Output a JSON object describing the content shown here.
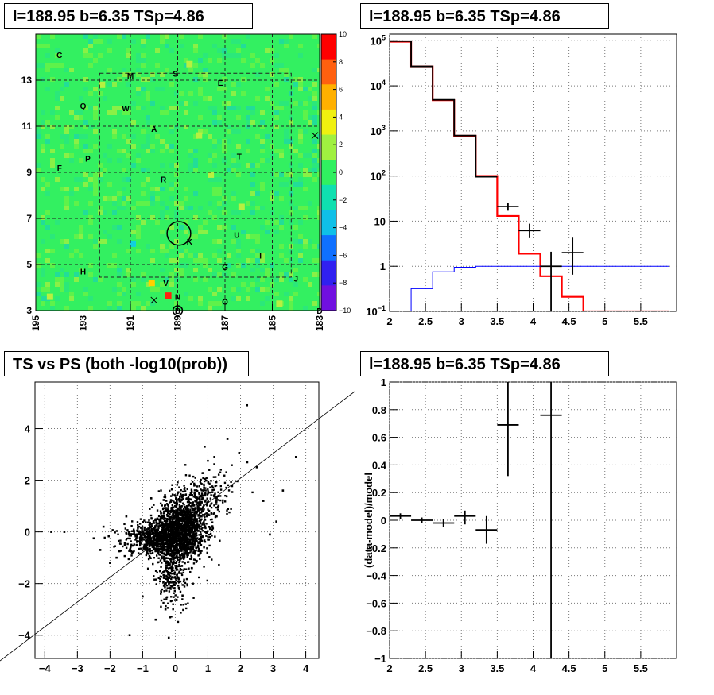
{
  "chart_data": [
    {
      "type": "heatmap",
      "title": "l=188.95 b=6.35 TSp=4.86",
      "xlim": [
        195,
        183
      ],
      "ylim": [
        3,
        15
      ],
      "x_ticks": [
        "195",
        "193",
        "191",
        "189",
        "187",
        "185",
        "183"
      ],
      "y_ticks": [
        "3",
        "5",
        "7",
        "9",
        "11",
        "13"
      ],
      "colorbar": {
        "min": -10,
        "max": 10,
        "ticks": [
          "10",
          "8",
          "6",
          "4",
          "2",
          "0",
          "−2",
          "−4",
          "−6",
          "−8",
          "−10"
        ]
      },
      "colors": {
        "background": "#33f061"
      },
      "hotspots": [
        {
          "l": 189.4,
          "b": 3.65,
          "v": 9
        },
        {
          "l": 190.1,
          "b": 4.2,
          "v": 4
        },
        {
          "l": 188.1,
          "b": 10.6,
          "v": 3
        },
        {
          "l": 187.6,
          "b": 8.9,
          "v": 2.5
        },
        {
          "l": 192.2,
          "b": 12.8,
          "v": 2
        },
        {
          "l": 184.7,
          "b": 3.3,
          "v": 3
        },
        {
          "l": 194.4,
          "b": 3.6,
          "v": 3
        },
        {
          "l": 190.9,
          "b": 5.9,
          "v": -3
        },
        {
          "l": 186.3,
          "b": 7.5,
          "v": 2
        },
        {
          "l": 188.5,
          "b": 13.7,
          "v": 2
        }
      ],
      "sources": [
        {
          "label": "C",
          "l": 194.0,
          "b": 14.1
        },
        {
          "label": "M",
          "l": 191.0,
          "b": 13.2
        },
        {
          "label": "S",
          "l": 189.1,
          "b": 13.3
        },
        {
          "label": "E",
          "l": 187.2,
          "b": 12.9
        },
        {
          "label": "Q",
          "l": 193.0,
          "b": 11.9
        },
        {
          "label": "W",
          "l": 191.2,
          "b": 11.8
        },
        {
          "label": "A",
          "l": 190.0,
          "b": 10.9
        },
        {
          "label": "F",
          "l": 194.0,
          "b": 9.2
        },
        {
          "label": "P",
          "l": 192.8,
          "b": 9.6
        },
        {
          "label": "T",
          "l": 186.4,
          "b": 9.7
        },
        {
          "label": "R",
          "l": 189.6,
          "b": 8.7
        },
        {
          "label": "U",
          "l": 186.5,
          "b": 6.3
        },
        {
          "label": "K",
          "l": 188.5,
          "b": 6.0
        },
        {
          "label": "I",
          "l": 185.5,
          "b": 5.4
        },
        {
          "label": "G",
          "l": 187.0,
          "b": 4.9
        },
        {
          "label": "H",
          "l": 193.0,
          "b": 4.7
        },
        {
          "label": "J",
          "l": 184.0,
          "b": 4.4
        },
        {
          "label": "V",
          "l": 189.5,
          "b": 4.2
        },
        {
          "label": "N",
          "l": 189.0,
          "b": 3.6
        },
        {
          "label": "O",
          "l": 187.0,
          "b": 3.4
        },
        {
          "label": "B",
          "l": 189.0,
          "b": 3.0
        },
        {
          "label": "D",
          "l": 183.0,
          "b": 3.0
        }
      ],
      "marker_circles": [
        {
          "l": 188.95,
          "b": 6.35,
          "r": 0.5
        },
        {
          "l": 189.0,
          "b": 3.0,
          "r": 0.2
        }
      ],
      "cross_markers": [
        {
          "l": 190.0,
          "b": 3.45
        },
        {
          "l": 183.2,
          "b": 10.6
        }
      ]
    },
    {
      "type": "line",
      "title": "l=188.95 b=6.35 TSp=4.86",
      "xlim": [
        2,
        6
      ],
      "ylim": [
        0.1,
        140000
      ],
      "y_scale": "log",
      "x_ticks": [
        "2",
        "2.5",
        "3",
        "3.5",
        "4",
        "4.5",
        "5",
        "5.5"
      ],
      "y_ticks": [
        {
          "v": 0.1,
          "base": "10",
          "exp": "−1"
        },
        {
          "v": 1,
          "label": "1"
        },
        {
          "v": 10,
          "label": "10"
        },
        {
          "v": 100,
          "base": "10",
          "exp": "2"
        },
        {
          "v": 1000,
          "base": "10",
          "exp": "3"
        },
        {
          "v": 10000,
          "base": "10",
          "exp": "4"
        },
        {
          "v": 100000,
          "base": "10",
          "exp": "5"
        }
      ],
      "grid": true,
      "bin_edges": [
        2.0,
        2.3,
        2.6,
        2.9,
        3.2,
        3.5,
        3.8,
        4.1,
        4.4,
        4.7,
        5.0,
        5.3,
        5.6,
        5.9
      ],
      "series": [
        {
          "kind": "step",
          "color": "#ff0000",
          "values": [
            95000,
            27000,
            4800,
            780,
            100,
            13,
            1.9,
            0.6,
            0.21,
            0.1,
            0.1,
            0.1,
            0.1
          ]
        },
        {
          "kind": "step",
          "color": "#000000",
          "values": [
            98000,
            27000,
            4900,
            790,
            96,
            null,
            null,
            null,
            null,
            null,
            null,
            null,
            null
          ]
        },
        {
          "kind": "step",
          "color": "#0000ff",
          "values": [
            0.01,
            0.32,
            0.75,
            0.95,
            1.0,
            1.0,
            1.0,
            1.0,
            1.0,
            1.0,
            1.0,
            1.0,
            1.0
          ]
        },
        {
          "kind": "points",
          "color": "#000000",
          "points": [
            {
              "x": 3.65,
              "y": 21,
              "ylo": 17,
              "yhi": 25,
              "xerr": 0.15
            },
            {
              "x": 3.95,
              "y": 6.2,
              "ylo": 4.2,
              "yhi": 8.8,
              "xerr": 0.15
            },
            {
              "x": 4.25,
              "y": 1.0,
              "ylo": 0.1,
              "yhi": 2.1,
              "xerr": 0.15
            },
            {
              "x": 4.55,
              "y": 2.0,
              "ylo": 0.65,
              "yhi": 4.3,
              "xerr": 0.15
            }
          ]
        }
      ]
    },
    {
      "type": "scatter",
      "title": "TS vs PS (both -log10(prob))",
      "xlim": [
        -4.3,
        4.4
      ],
      "ylim": [
        -4.9,
        5.8
      ],
      "x_ticks": [
        -4,
        -3,
        -2,
        -1,
        0,
        1,
        2,
        3,
        4
      ],
      "y_ticks": [
        -4,
        -2,
        0,
        2,
        4
      ],
      "grid": true,
      "reference_line": {
        "slope": 1,
        "intercept": 0
      },
      "points": [
        [
          -3.8,
          0
        ],
        [
          -3.4,
          0
        ],
        [
          -2.5,
          -0.25
        ],
        [
          -2.3,
          -0.7
        ],
        [
          -2.0,
          -1.2
        ],
        [
          -1.4,
          -4.0
        ],
        [
          -0.2,
          -4.1
        ],
        [
          -0.6,
          -3.4
        ],
        [
          -1.0,
          -2.5
        ],
        [
          1.6,
          3.6
        ],
        [
          2.2,
          4.9
        ],
        [
          3.7,
          2.9
        ],
        [
          3.1,
          0.4
        ],
        [
          2.9,
          -0.1
        ],
        [
          2.7,
          1.2
        ],
        [
          -1.8,
          -1.0
        ],
        [
          -1.5,
          0.6
        ],
        [
          -2.2,
          0.2
        ],
        [
          3.3,
          1.6
        ],
        [
          2.5,
          2.5
        ],
        [
          -0.3,
          -3.0
        ],
        [
          0.9,
          3.3
        ],
        [
          1.2,
          2.9
        ]
      ],
      "cloud": {
        "n": 2600,
        "seed": 7
      }
    },
    {
      "type": "line",
      "title": "l=188.95 b=6.35 TSp=4.86",
      "ylabel": "(data-model)/model",
      "xlim": [
        2,
        6
      ],
      "ylim": [
        -1,
        1
      ],
      "x_ticks": [
        "2",
        "2.5",
        "3",
        "3.5",
        "4",
        "4.5",
        "5",
        "5.5"
      ],
      "y_ticks": [
        "1",
        "0.8",
        "0.6",
        "0.4",
        "0.2",
        "0",
        "−0.2",
        "−0.4",
        "−0.6",
        "−0.8",
        "−1"
      ],
      "grid": true,
      "points": [
        {
          "x": 2.15,
          "y": 0.03,
          "ylo": 0.01,
          "yhi": 0.05,
          "xerr": 0.15
        },
        {
          "x": 2.45,
          "y": 0.0,
          "ylo": -0.02,
          "yhi": 0.02,
          "xerr": 0.15
        },
        {
          "x": 2.75,
          "y": -0.02,
          "ylo": -0.05,
          "yhi": 0.01,
          "xerr": 0.15
        },
        {
          "x": 3.05,
          "y": 0.03,
          "ylo": -0.03,
          "yhi": 0.07,
          "xerr": 0.15
        },
        {
          "x": 3.35,
          "y": -0.07,
          "ylo": -0.17,
          "yhi": 0.03,
          "xerr": 0.15
        },
        {
          "x": 3.65,
          "y": 0.69,
          "ylo": 0.32,
          "yhi": 1.0,
          "xerr": 0.15
        },
        {
          "x": 4.25,
          "y": 0.76,
          "ylo": -1.0,
          "yhi": 1.0,
          "xerr": 0.15
        }
      ]
    }
  ]
}
